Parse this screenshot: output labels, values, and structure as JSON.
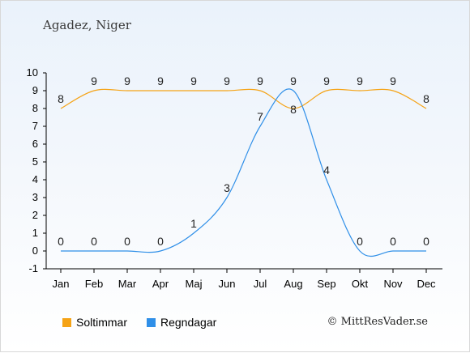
{
  "title": "Agadez, Niger",
  "credit": "© MittResVader.se",
  "chart_data": {
    "type": "line",
    "categories": [
      "Jan",
      "Feb",
      "Mar",
      "Apr",
      "Maj",
      "Jun",
      "Jul",
      "Aug",
      "Sep",
      "Okt",
      "Nov",
      "Dec"
    ],
    "y_ticks": [
      "-1",
      "0",
      "1",
      "2",
      "3",
      "4",
      "5",
      "6",
      "7",
      "8",
      "9",
      "10"
    ],
    "ylim": [
      -1,
      10
    ],
    "grid": false,
    "legend_position": "bottom-left",
    "series": [
      {
        "name": "Soltimmar",
        "color": "#f5a316",
        "values": [
          8,
          9,
          9,
          9,
          9,
          9,
          9,
          8,
          9,
          9,
          9,
          8
        ],
        "labels": [
          "8",
          "9",
          "9",
          "9",
          "9",
          "9",
          "9",
          "8",
          "9",
          "9",
          "9",
          "8"
        ]
      },
      {
        "name": "Regndagar",
        "color": "#2f8fe8",
        "values": [
          0,
          0,
          0,
          0,
          1,
          3,
          7,
          9,
          4,
          0,
          0,
          0
        ],
        "labels": [
          "0",
          "0",
          "0",
          "0",
          "1",
          "3",
          "7",
          "9",
          "4",
          "0",
          "0",
          "0"
        ]
      }
    ]
  }
}
